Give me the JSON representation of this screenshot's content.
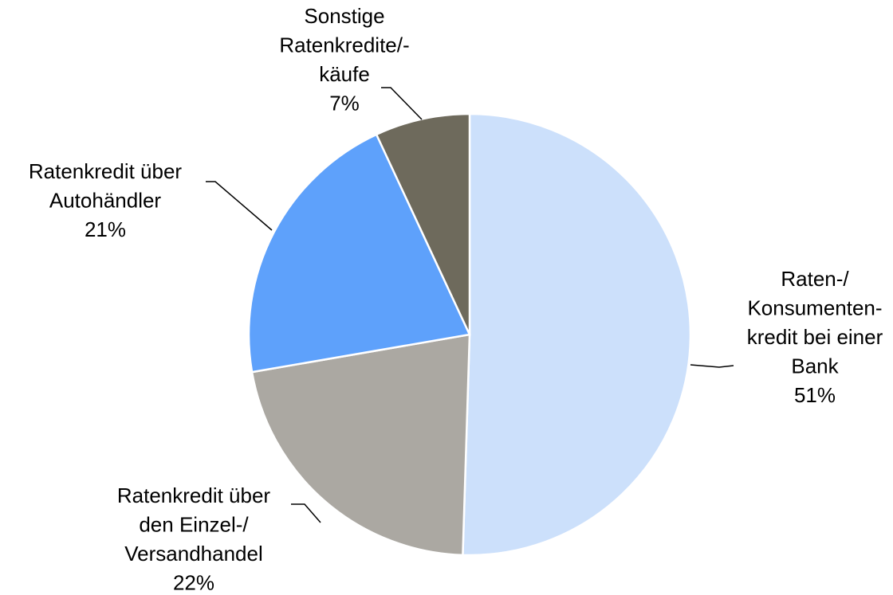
{
  "chart_data": {
    "type": "pie",
    "categories": [
      "Raten-/\nKonsumenten-\nkredit bei einer\nBank",
      "Ratenkredit über\nden Einzel-/\nVersandhandel",
      "Ratenkredit über\nAutohändler",
      "Sonstige\nRatenkredite/-\nkäufe"
    ],
    "values": [
      51,
      22,
      21,
      7
    ],
    "value_labels": [
      "51%",
      "22%",
      "21%",
      "7%"
    ],
    "colors": [
      "#cce0fb",
      "#aba8a2",
      "#5ea1fb",
      "#6e6a5c"
    ]
  }
}
